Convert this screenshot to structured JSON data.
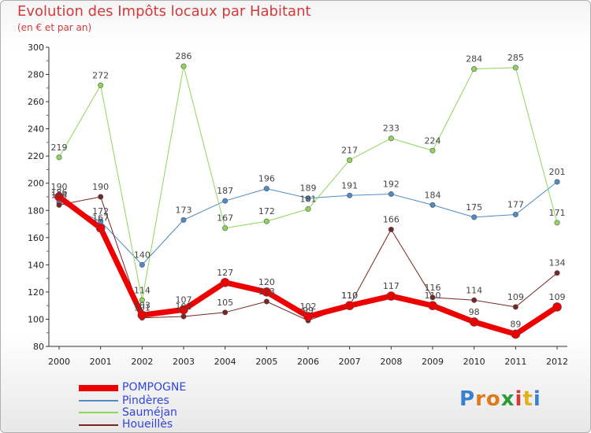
{
  "title": "Evolution des Impôts locaux par Habitant",
  "subtitle": "(en € et par an)",
  "logo_text": "Proxiti",
  "chart_data": {
    "type": "line",
    "title": "Evolution des Impôts locaux par Habitant",
    "subtitle": "(en € et par an)",
    "xlabel": "",
    "ylabel": "",
    "ylim": [
      80,
      300
    ],
    "yticks": [
      80,
      100,
      120,
      140,
      160,
      180,
      200,
      220,
      240,
      260,
      280,
      300
    ],
    "categories": [
      "2000",
      "2001",
      "2002",
      "2003",
      "2004",
      "2005",
      "2006",
      "2007",
      "2008",
      "2009",
      "2010",
      "2011",
      "2012"
    ],
    "series": [
      {
        "name": "POMPOGNE",
        "color": "#ee0000",
        "width": 7,
        "values": [
          190,
          167,
          103,
          107,
          127,
          120,
          102,
          110,
          117,
          110,
          98,
          89,
          109
        ],
        "labels": [
          "190",
          "167",
          "103",
          "107",
          "127",
          "120",
          "102",
          "110",
          "117",
          "110",
          "98",
          "89",
          "109"
        ]
      },
      {
        "name": "Pindères",
        "color": "#4f8ac9",
        "width": 1,
        "values": [
          186,
          172,
          140,
          173,
          187,
          196,
          189,
          191,
          192,
          184,
          175,
          177,
          201
        ],
        "labels": [
          "186",
          "172",
          "140",
          "173",
          "187",
          "196",
          "189",
          "191",
          "192",
          "184",
          "175",
          "177",
          "201"
        ]
      },
      {
        "name": "Sauméjan",
        "color": "#8ed65a",
        "width": 1,
        "values": [
          219,
          272,
          114,
          286,
          167,
          172,
          181,
          217,
          233,
          224,
          284,
          285,
          171
        ],
        "labels": [
          "219",
          "272",
          "114",
          "286",
          "167",
          "172",
          "181",
          "217",
          "233",
          "224",
          "284",
          "285",
          "171"
        ]
      },
      {
        "name": "Houeillès",
        "color": "#7a2424",
        "width": 1,
        "values": [
          184,
          190,
          101,
          102,
          105,
          113,
          99,
          110,
          166,
          116,
          114,
          109,
          134
        ],
        "labels": [
          "184",
          "190",
          "101",
          "102",
          "105",
          "113",
          "99",
          "110",
          "166",
          "116",
          "114",
          "109",
          "134"
        ]
      }
    ],
    "legend": "bottom-left",
    "grid": false
  }
}
